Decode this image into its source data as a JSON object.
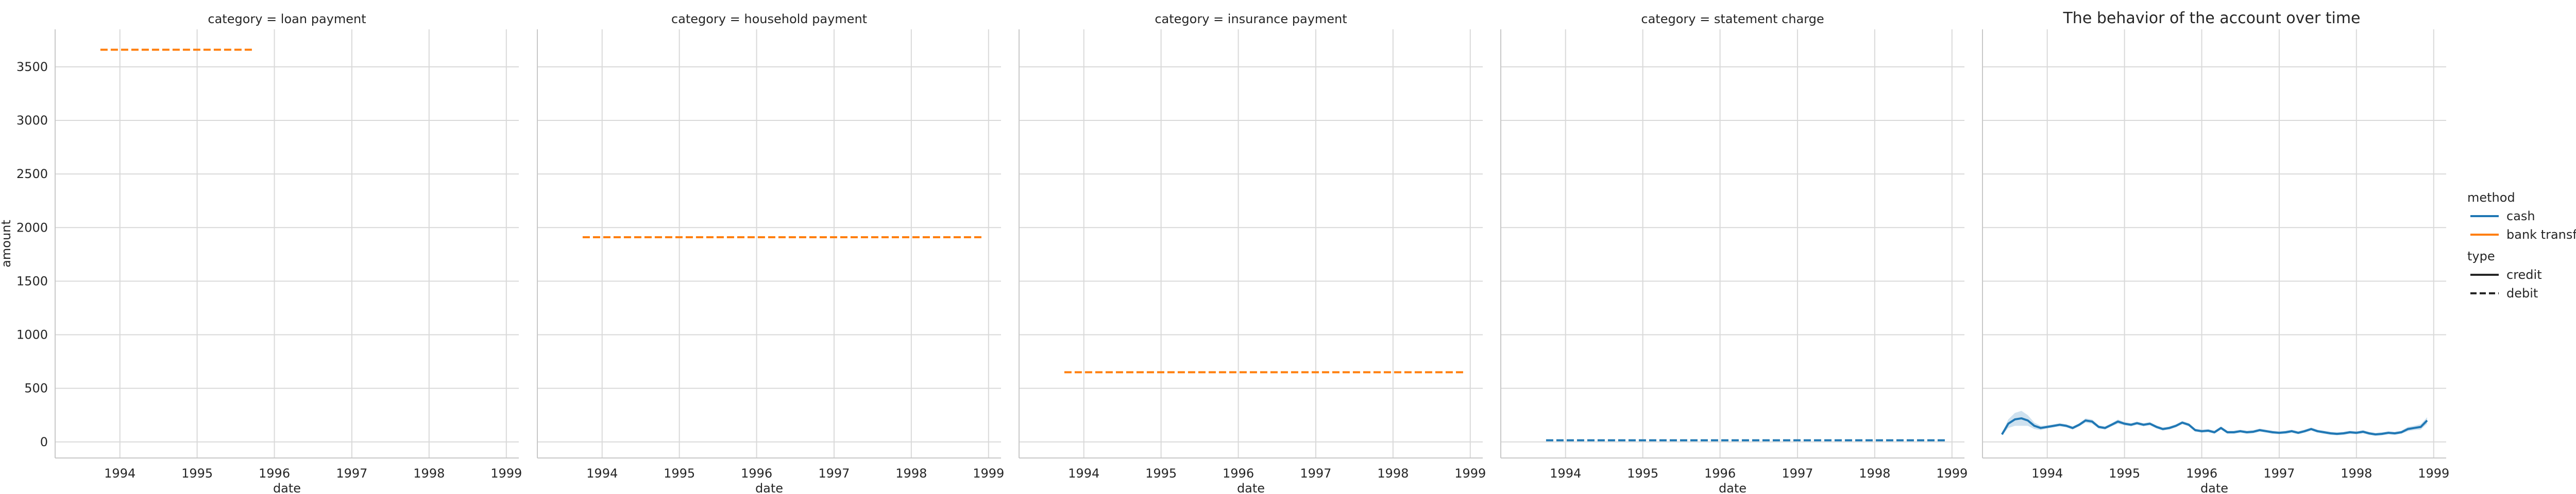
{
  "figure": {
    "suptitle": "The behavior of the account over time"
  },
  "colors": {
    "cash": "#1f77b4",
    "bank_transfer": "#ff7f0e",
    "grid": "#d9d9d9",
    "spine": "#c8c8c8",
    "text": "#262626"
  },
  "legend": {
    "placement": "right",
    "method_title": "method",
    "method_entries": [
      {
        "label": "cash",
        "color": "#1f77b4"
      },
      {
        "label": "bank transfer",
        "color": "#ff7f0e"
      }
    ],
    "type_title": "type",
    "type_entries": [
      {
        "label": "credit",
        "dash": "solid"
      },
      {
        "label": "debit",
        "dash": "dashed"
      }
    ]
  },
  "chart_data": [
    {
      "type": "line",
      "title": "category = loan payment",
      "xlabel": "date",
      "ylabel": "amount",
      "xlim": [
        "1993-03-01",
        "1999-03-01"
      ],
      "ylim": [
        -150,
        3850
      ],
      "xticks": [
        "1994",
        "1995",
        "1996",
        "1997",
        "1998",
        "1999"
      ],
      "yticks": [
        0,
        500,
        1000,
        1500,
        2000,
        2500,
        3000,
        3500
      ],
      "grid": true,
      "series": [
        {
          "method": "bank transfer",
          "type": "debit",
          "x": [
            "1993-10-01",
            "1995-10-01"
          ],
          "y": [
            3660,
            3660
          ]
        }
      ]
    },
    {
      "type": "line",
      "title": "category = household payment",
      "xlabel": "date",
      "ylabel": "",
      "xlim": [
        "1993-03-01",
        "1999-03-01"
      ],
      "ylim": [
        -150,
        3850
      ],
      "xticks": [
        "1994",
        "1995",
        "1996",
        "1997",
        "1998",
        "1999"
      ],
      "grid": true,
      "series": [
        {
          "method": "bank transfer",
          "type": "debit",
          "x": [
            "1993-10-01",
            "1998-12-01"
          ],
          "y": [
            1910,
            1910
          ]
        }
      ]
    },
    {
      "type": "line",
      "title": "category = insurance payment",
      "xlabel": "date",
      "ylabel": "",
      "xlim": [
        "1993-03-01",
        "1999-03-01"
      ],
      "ylim": [
        -150,
        3850
      ],
      "xticks": [
        "1994",
        "1995",
        "1996",
        "1997",
        "1998",
        "1999"
      ],
      "grid": true,
      "series": [
        {
          "method": "bank transfer",
          "type": "debit",
          "x": [
            "1993-10-01",
            "1998-12-01"
          ],
          "y": [
            650,
            650
          ]
        }
      ]
    },
    {
      "type": "line",
      "title": "category = statement charge",
      "xlabel": "date",
      "ylabel": "",
      "xlim": [
        "1993-03-01",
        "1999-03-01"
      ],
      "ylim": [
        -150,
        3850
      ],
      "xticks": [
        "1994",
        "1995",
        "1996",
        "1997",
        "1998",
        "1999"
      ],
      "grid": true,
      "series": [
        {
          "method": "cash",
          "type": "debit",
          "x": [
            "1993-10-01",
            "1998-12-01"
          ],
          "y": [
            15,
            15
          ]
        }
      ]
    },
    {
      "type": "line",
      "title": "",
      "xlabel": "date",
      "ylabel": "",
      "xlim": [
        "1993-03-01",
        "1999-03-01"
      ],
      "ylim": [
        -150,
        3850
      ],
      "xticks": [
        "1994",
        "1995",
        "1996",
        "1997",
        "1998",
        "1999"
      ],
      "grid": true,
      "series": [
        {
          "method": "cash",
          "type": "credit",
          "band": true,
          "x": [
            "1993-06-01",
            "1993-07-01",
            "1993-08-01",
            "1993-09-01",
            "1993-10-01",
            "1993-11-01",
            "1993-12-01",
            "1994-01-01",
            "1994-02-01",
            "1994-03-01",
            "1994-04-01",
            "1994-05-01",
            "1994-06-01",
            "1994-07-01",
            "1994-08-01",
            "1994-09-01",
            "1994-10-01",
            "1994-11-01",
            "1994-12-01",
            "1995-01-01",
            "1995-02-01",
            "1995-03-01",
            "1995-04-01",
            "1995-05-01",
            "1995-06-01",
            "1995-07-01",
            "1995-08-01",
            "1995-09-01",
            "1995-10-01",
            "1995-11-01",
            "1995-12-01",
            "1996-01-01",
            "1996-02-01",
            "1996-03-01",
            "1996-04-01",
            "1996-05-01",
            "1996-06-01",
            "1996-07-01",
            "1996-08-01",
            "1996-09-01",
            "1996-10-01",
            "1996-11-01",
            "1996-12-01",
            "1997-01-01",
            "1997-02-01",
            "1997-03-01",
            "1997-04-01",
            "1997-05-01",
            "1997-06-01",
            "1997-07-01",
            "1997-08-01",
            "1997-09-01",
            "1997-10-01",
            "1997-11-01",
            "1997-12-01",
            "1998-01-01",
            "1998-02-01",
            "1998-03-01",
            "1998-04-01",
            "1998-05-01",
            "1998-06-01",
            "1998-07-01",
            "1998-08-01",
            "1998-09-01",
            "1998-10-01",
            "1998-11-01",
            "1998-12-01"
          ],
          "y": [
            70,
            170,
            210,
            220,
            200,
            150,
            130,
            140,
            150,
            160,
            150,
            130,
            160,
            200,
            190,
            140,
            130,
            160,
            190,
            170,
            160,
            175,
            160,
            170,
            140,
            120,
            130,
            150,
            180,
            160,
            110,
            100,
            105,
            90,
            130,
            90,
            90,
            100,
            90,
            95,
            110,
            100,
            90,
            85,
            90,
            100,
            85,
            100,
            120,
            100,
            90,
            80,
            75,
            80,
            90,
            85,
            95,
            80,
            70,
            75,
            85,
            80,
            90,
            120,
            130,
            140,
            200
          ],
          "err": [
            10,
            40,
            60,
            70,
            50,
            30,
            20,
            15,
            15,
            15,
            15,
            15,
            15,
            20,
            20,
            15,
            15,
            15,
            20,
            15,
            15,
            15,
            15,
            15,
            15,
            15,
            15,
            15,
            15,
            15,
            15,
            15,
            15,
            15,
            15,
            15,
            15,
            15,
            15,
            15,
            15,
            15,
            15,
            15,
            15,
            15,
            15,
            15,
            15,
            15,
            15,
            15,
            15,
            15,
            15,
            15,
            15,
            15,
            15,
            15,
            15,
            15,
            15,
            20,
            20,
            25,
            30
          ]
        }
      ]
    }
  ]
}
